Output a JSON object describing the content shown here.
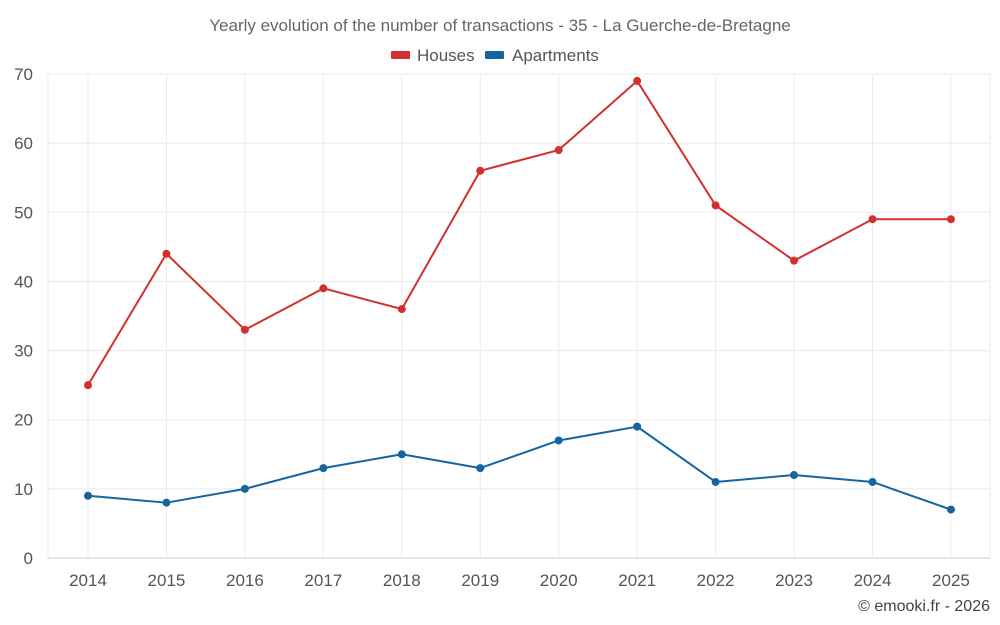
{
  "chart_data": {
    "type": "line",
    "title": "Yearly evolution of the number of transactions - 35 - La Guerche-de-Bretagne",
    "x": [
      "2014",
      "2015",
      "2016",
      "2017",
      "2018",
      "2019",
      "2020",
      "2021",
      "2022",
      "2023",
      "2024",
      "2025"
    ],
    "series": [
      {
        "name": "Houses",
        "color": "#d32f2f",
        "values": [
          25,
          44,
          33,
          39,
          36,
          56,
          59,
          69,
          51,
          43,
          49,
          49
        ]
      },
      {
        "name": "Apartments",
        "color": "#1565a0",
        "values": [
          9,
          8,
          10,
          13,
          15,
          13,
          17,
          19,
          11,
          12,
          11,
          7
        ]
      }
    ],
    "ylim": [
      0,
      70
    ],
    "yticks": [
      0,
      10,
      20,
      30,
      40,
      50,
      60,
      70
    ],
    "grid": true,
    "legend_position": "top-center",
    "xlabel": "",
    "ylabel": ""
  },
  "credit": "© emooki.fr - 2026"
}
